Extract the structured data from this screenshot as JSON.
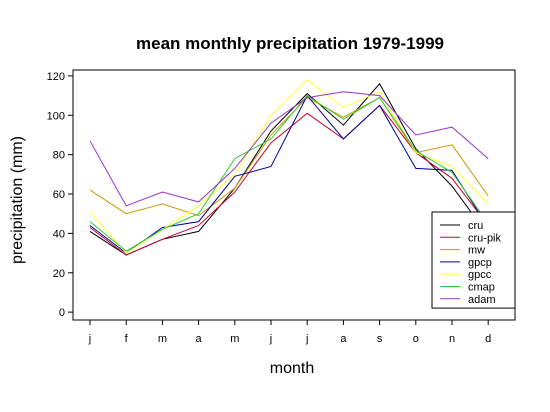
{
  "chart_data": {
    "type": "line",
    "title": "mean monthly precipitation 1979-1999",
    "xlabel": "month",
    "ylabel": "precipitation (mm)",
    "categories": [
      "j",
      "f",
      "m",
      "a",
      "m",
      "j",
      "j",
      "a",
      "s",
      "o",
      "n",
      "d"
    ],
    "ylim": [
      -4,
      123
    ],
    "yticks": [
      0,
      20,
      40,
      60,
      80,
      100,
      120
    ],
    "grid": false,
    "legend_position": "bottom-right",
    "series": [
      {
        "name": "cru",
        "color": "#000000",
        "values": [
          41,
          29,
          37,
          41,
          63,
          92,
          111,
          95,
          116,
          83,
          64,
          39
        ]
      },
      {
        "name": "cru-pik",
        "color": "#cc0033",
        "values": [
          43,
          29,
          37,
          44,
          61,
          86,
          101,
          88,
          105,
          81,
          68,
          44
        ]
      },
      {
        "name": "mw",
        "color": "#cc9900",
        "values": [
          62,
          50,
          55,
          49,
          63,
          90,
          109,
          99,
          109,
          81,
          85,
          59
        ]
      },
      {
        "name": "gpcp",
        "color": "#000099",
        "values": [
          44,
          30,
          43,
          46,
          69,
          74,
          110,
          88,
          105,
          73,
          72,
          43
        ]
      },
      {
        "name": "gpcc",
        "color": "#ffff33",
        "values": [
          51,
          30,
          42,
          54,
          70,
          100,
          118,
          104,
          112,
          81,
          74,
          55
        ]
      },
      {
        "name": "cmap",
        "color": "#33cc33",
        "values": [
          46,
          31,
          42,
          50,
          78,
          88,
          110,
          98,
          109,
          82,
          71,
          45
        ]
      },
      {
        "name": "adam",
        "color": "#9933cc",
        "values": [
          87,
          54,
          61,
          56,
          73,
          96,
          109,
          112,
          110,
          90,
          94,
          78
        ]
      }
    ]
  }
}
